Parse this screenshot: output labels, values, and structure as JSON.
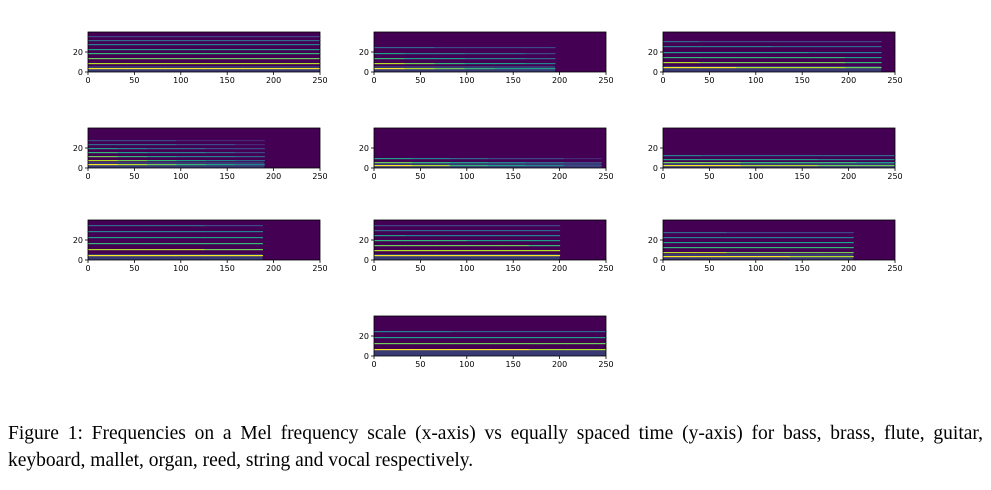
{
  "figure": {
    "caption": "Figure 1: Frequencies on a Mel frequency scale (x-axis) vs equally spaced time (y-axis) for bass, brass, flute, guitar, keyboard, mallet, organ, reed, string and vocal respectively."
  },
  "chart_data": [
    {
      "type": "heatmap",
      "instrument": "bass",
      "xlim": [
        0,
        250
      ],
      "ylim": [
        0,
        40
      ],
      "xticks": [
        "0",
        "50",
        "100",
        "150",
        "200",
        "250"
      ],
      "yticks": [
        "0",
        "20"
      ],
      "note_end": 250,
      "decay": 0.05,
      "bands": [
        3,
        8,
        13,
        18,
        22,
        27,
        31,
        35
      ],
      "colormap": "viridis",
      "bg": "#440154"
    },
    {
      "type": "heatmap",
      "instrument": "brass",
      "xlim": [
        0,
        250
      ],
      "ylim": [
        0,
        40
      ],
      "xticks": [
        "0",
        "50",
        "100",
        "150",
        "200",
        "250"
      ],
      "yticks": [
        "0",
        "20"
      ],
      "note_end": 195,
      "decay": 0.6,
      "bands": [
        3,
        8,
        13,
        18,
        24
      ],
      "colormap": "viridis",
      "bg": "#440154"
    },
    {
      "type": "heatmap",
      "instrument": "flute",
      "xlim": [
        0,
        250
      ],
      "ylim": [
        0,
        40
      ],
      "xticks": [
        "0",
        "50",
        "100",
        "150",
        "200",
        "250"
      ],
      "yticks": [
        "0",
        "20"
      ],
      "note_end": 235,
      "decay": 0.2,
      "bands": [
        4,
        9,
        14,
        19,
        25,
        30
      ],
      "colormap": "viridis",
      "bg": "#440154"
    },
    {
      "type": "heatmap",
      "instrument": "guitar",
      "xlim": [
        0,
        250
      ],
      "ylim": [
        0,
        40
      ],
      "xticks": [
        "0",
        "50",
        "100",
        "150",
        "200",
        "250"
      ],
      "yticks": [
        "0",
        "20"
      ],
      "note_end": 190,
      "decay": 0.7,
      "bands": [
        3,
        7,
        11,
        15,
        19,
        23,
        27
      ],
      "colormap": "viridis",
      "bg": "#440154"
    },
    {
      "type": "heatmap",
      "instrument": "keyboard",
      "xlim": [
        0,
        250
      ],
      "ylim": [
        0,
        40
      ],
      "xticks": [
        "0",
        "50",
        "100",
        "150",
        "200",
        "250"
      ],
      "yticks": [
        "0",
        "20"
      ],
      "note_end": 245,
      "decay": 0.9,
      "bands": [
        2,
        5,
        9
      ],
      "colormap": "viridis",
      "bg": "#440154"
    },
    {
      "type": "heatmap",
      "instrument": "mallet",
      "xlim": [
        0,
        250
      ],
      "ylim": [
        0,
        40
      ],
      "xticks": [
        "0",
        "50",
        "100",
        "150",
        "200",
        "250"
      ],
      "yticks": [
        "0",
        "20"
      ],
      "note_end": 250,
      "decay": 0.3,
      "bands": [
        2,
        5,
        8,
        12
      ],
      "colormap": "viridis",
      "bg": "#440154"
    },
    {
      "type": "heatmap",
      "instrument": "organ",
      "xlim": [
        0,
        250
      ],
      "ylim": [
        0,
        40
      ],
      "xticks": [
        "0",
        "50",
        "100",
        "150",
        "200",
        "250"
      ],
      "yticks": [
        "0",
        "20"
      ],
      "note_end": 188,
      "decay": 0.05,
      "bands": [
        4,
        10,
        16,
        22,
        28,
        34
      ],
      "colormap": "viridis",
      "bg": "#440154"
    },
    {
      "type": "heatmap",
      "instrument": "reed",
      "xlim": [
        0,
        250
      ],
      "ylim": [
        0,
        40
      ],
      "xticks": [
        "0",
        "50",
        "100",
        "150",
        "200",
        "250"
      ],
      "yticks": [
        "0",
        "20"
      ],
      "note_end": 200,
      "decay": 0.05,
      "bands": [
        4,
        9,
        14,
        19,
        24,
        29,
        34
      ],
      "colormap": "viridis",
      "bg": "#440154"
    },
    {
      "type": "heatmap",
      "instrument": "string",
      "xlim": [
        0,
        250
      ],
      "ylim": [
        0,
        40
      ],
      "xticks": [
        "0",
        "50",
        "100",
        "150",
        "200",
        "250"
      ],
      "yticks": [
        "0",
        "20"
      ],
      "note_end": 205,
      "decay": 0.1,
      "bands": [
        3,
        7,
        12,
        17,
        22,
        27
      ],
      "colormap": "viridis",
      "bg": "#440154"
    },
    {
      "type": "heatmap",
      "instrument": "vocal",
      "xlim": [
        0,
        250
      ],
      "ylim": [
        0,
        40
      ],
      "xticks": [
        "0",
        "50",
        "100",
        "150",
        "200",
        "250"
      ],
      "yticks": [
        "0",
        "20"
      ],
      "note_end": 250,
      "decay": 0.1,
      "bands": [
        6,
        12,
        18,
        24
      ],
      "colormap": "viridis",
      "bg": "#440154"
    }
  ]
}
